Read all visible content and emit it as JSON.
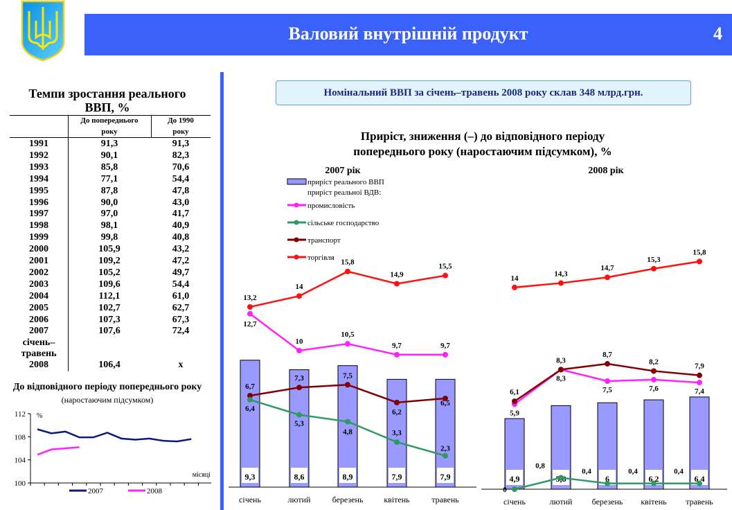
{
  "header": {
    "title": "Валовий внутрішній продукт",
    "page_number": "4",
    "accent": "#3a62fa"
  },
  "info_box": "Номінальний ВВП за січень–травень 2008 року склав 348 млрд.грн.",
  "table": {
    "title_line1": "Темпи зростання реального",
    "title_line2": "ВВП, %",
    "col1_line1": "До попереднього",
    "col1_line2": "року",
    "col2_line1": "До 1990",
    "col2_line2": "року",
    "rows": [
      [
        "1991",
        "91,3",
        "91,3"
      ],
      [
        "1992",
        "90,1",
        "82,3"
      ],
      [
        "1993",
        "85,8",
        "70,6"
      ],
      [
        "1994",
        "77,1",
        "54,4"
      ],
      [
        "1995",
        "87,8",
        "47,8"
      ],
      [
        "1996",
        "90,0",
        "43,0"
      ],
      [
        "1997",
        "97,0",
        "41,7"
      ],
      [
        "1998",
        "98,1",
        "40,9"
      ],
      [
        "1999",
        "99,8",
        "40,8"
      ],
      [
        "2000",
        "105,9",
        "43,2"
      ],
      [
        "2001",
        "109,2",
        "47,2"
      ],
      [
        "2002",
        "105,2",
        "49,7"
      ],
      [
        "2003",
        "109,6",
        "54,4"
      ],
      [
        "2004",
        "112,1",
        "61,0"
      ],
      [
        "2005",
        "102,7",
        "62,7"
      ],
      [
        "2006",
        "107,3",
        "67,3"
      ],
      [
        "2007",
        "107,6",
        "72,4"
      ]
    ],
    "last_label_1": "січень–",
    "last_label_2": "травень",
    "last_year": "2008",
    "last_v1": "106,4",
    "last_v2": "x"
  },
  "chart_data": [
    {
      "type": "line",
      "title": "До відповідного періоду попереднього року",
      "subtitle": "(наростаючим підсумком)",
      "ylabel": "%",
      "xlabel": "місяці",
      "ylim": [
        100,
        112
      ],
      "yticks": [
        "100",
        "104",
        "108",
        "112"
      ],
      "series": [
        {
          "name": "2007",
          "color": "#0a1a80",
          "values": [
            109.3,
            108.6,
            108.9,
            107.9,
            107.9,
            108.7,
            107.7,
            107.5,
            107.7,
            107.3,
            107.2,
            107.6
          ]
        },
        {
          "name": "2008",
          "color": "#ff22ff",
          "values": [
            104.9,
            105.8,
            106.0,
            106.2
          ]
        }
      ]
    },
    {
      "type": "bar+line",
      "title_line1": "Приріст, зниження (–) до відповідного періоду",
      "title_line2": "попереднього року (наростаючим підсумком), %",
      "categories": [
        "січень",
        "лютий",
        "березень",
        "квітень",
        "травень"
      ],
      "legend": {
        "bar": "приріст реального ВВП",
        "group": "приріст реальної ВДВ:",
        "lines": [
          "промисловість",
          "сільське господарство",
          "транспорт",
          "торгівля"
        ]
      },
      "colors": {
        "bar": "#9999ff",
        "промисловість": "#ff22ff",
        "сільське господарство": "#2e9960",
        "транспорт": "#800000",
        "торгівля": "#ff1010"
      },
      "panels": [
        {
          "year_label": "2007 рік",
          "bars": [
            9.3,
            8.6,
            8.9,
            7.9,
            7.9
          ],
          "series": {
            "промисловість": [
              12.7,
              10.0,
              10.5,
              9.7,
              9.7
            ],
            "сільське господарство": [
              6.4,
              5.3,
              4.8,
              3.3,
              2.3
            ],
            "транспорт": [
              6.7,
              7.3,
              7.5,
              6.2,
              6.5
            ],
            "торгівля": [
              13.2,
              14.0,
              15.8,
              14.9,
              15.5
            ]
          }
        },
        {
          "year_label": "2008 рік",
          "bars": [
            4.9,
            5.8,
            6.0,
            6.2,
            6.4
          ],
          "series": {
            "промисловість": [
              5.9,
              8.3,
              7.5,
              7.6,
              7.4
            ],
            "сільське господарство": [
              0,
              0.8,
              0.4,
              0.4,
              0.4
            ],
            "транспорт": [
              6.1,
              8.3,
              8.7,
              8.2,
              7.9
            ],
            "торгівля": [
              14.0,
              14.3,
              14.7,
              15.3,
              15.8
            ]
          }
        }
      ]
    }
  ]
}
